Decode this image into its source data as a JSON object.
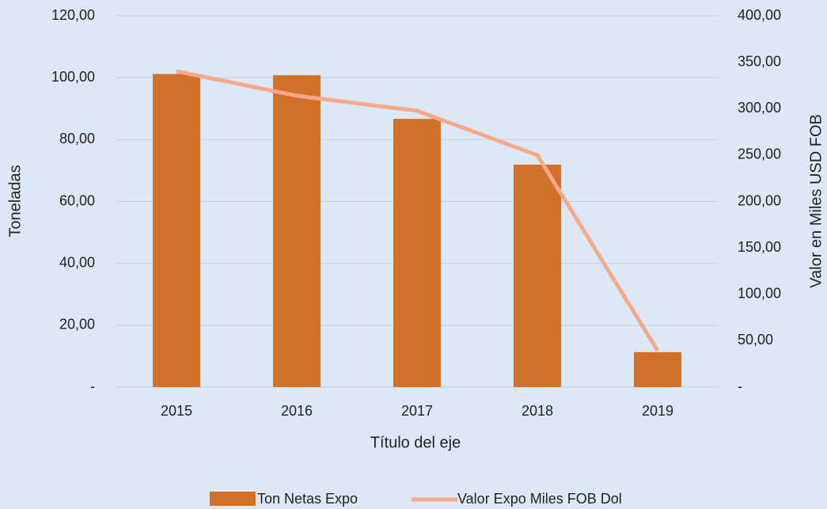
{
  "chart_data": {
    "type": "bar_line",
    "categories": [
      "2015",
      "2016",
      "2017",
      "2018",
      "2019"
    ],
    "series": [
      {
        "name": "Ton Netas Expo",
        "color": "#d2702a",
        "type": "bar",
        "values": [
          101.2,
          100.8,
          86.7,
          71.9,
          11.3
        ]
      },
      {
        "name": "Valor Expo Miles FOB Dol",
        "color": "#f4a98a",
        "type": "line",
        "axis": "y2",
        "values": [
          340.3,
          313.9,
          297.7,
          249.9,
          39.2
        ]
      }
    ],
    "xlabel": "Título del eje",
    "ylabel": "Toneladas",
    "y2label": "Valor en Miles USD FOB",
    "ylim": [
      0,
      120
    ],
    "yticks": [
      {
        "value": 0,
        "label": "-"
      },
      {
        "value": 20,
        "label": "20,00"
      },
      {
        "value": 40,
        "label": "40,00"
      },
      {
        "value": 60,
        "label": "60,00"
      },
      {
        "value": 80,
        "label": "80,00"
      },
      {
        "value": 100,
        "label": "100,00"
      },
      {
        "value": 120,
        "label": "120,00"
      }
    ],
    "y2lim": [
      0,
      400
    ],
    "y2ticks": [
      {
        "value": 0,
        "label": "-"
      },
      {
        "value": 50,
        "label": "50,00"
      },
      {
        "value": 100,
        "label": "100,00"
      },
      {
        "value": 150,
        "label": "150,00"
      },
      {
        "value": 200,
        "label": "200,00"
      },
      {
        "value": 250,
        "label": "250,00"
      },
      {
        "value": 300,
        "label": "300,00"
      },
      {
        "value": 350,
        "label": "350,00"
      },
      {
        "value": 400,
        "label": "400,00"
      }
    ],
    "grid": true
  }
}
